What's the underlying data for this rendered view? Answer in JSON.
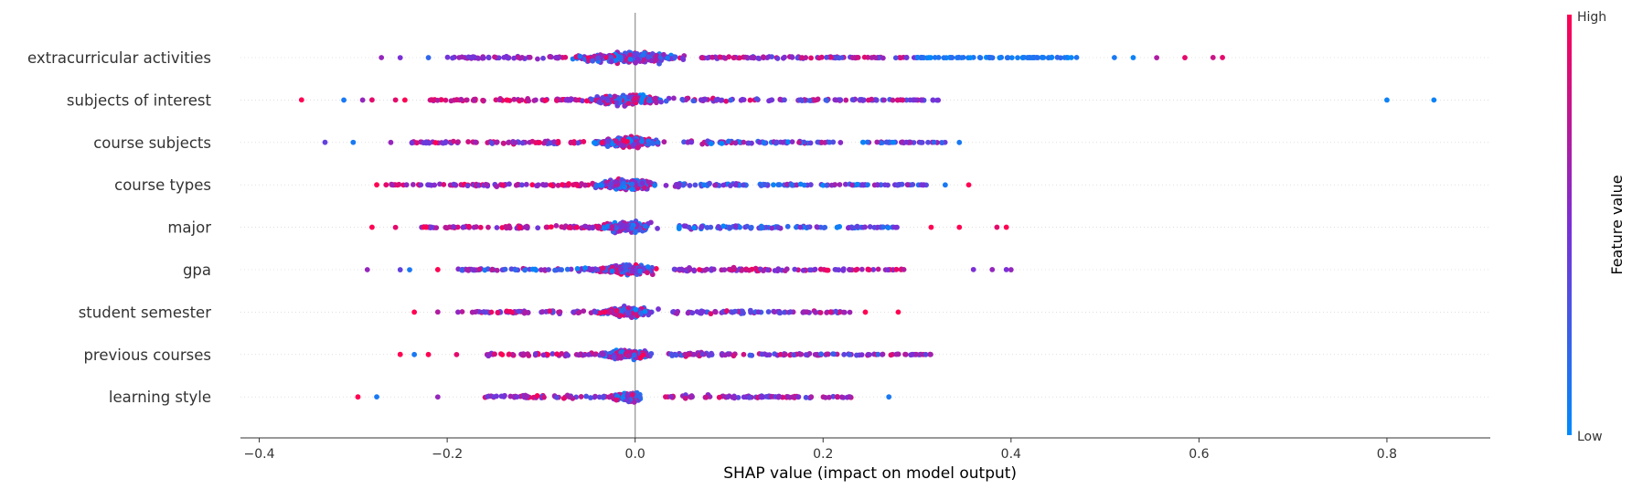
{
  "chart_data": {
    "type": "scatter",
    "subtype": "shap-beeswarm",
    "xlabel": "SHAP value (impact on model output)",
    "xlim": [
      -0.42,
      0.91
    ],
    "xticks": [
      -0.4,
      -0.2,
      0.0,
      0.2,
      0.4,
      0.6,
      0.8
    ],
    "xtick_labels": [
      "−0.4",
      "−0.2",
      "0.0",
      "0.2",
      "0.4",
      "0.6",
      "0.8"
    ],
    "features": [
      {
        "name": "extracurricular activities",
        "core_halfwidth": 0.07,
        "dense_density": 0.55,
        "outliers": [
          {
            "x": -0.27,
            "v": 0.6
          },
          {
            "x": -0.25,
            "v": 0.5
          },
          {
            "x": -0.22,
            "v": 0.2
          },
          {
            "x": 0.51,
            "v": 0.1
          },
          {
            "x": 0.53,
            "v": 0.05
          },
          {
            "x": 0.555,
            "v": 0.7
          },
          {
            "x": 0.585,
            "v": 0.9
          },
          {
            "x": 0.615,
            "v": 0.8
          },
          {
            "x": 0.625,
            "v": 0.9
          }
        ],
        "tail": [
          {
            "from": -0.2,
            "to": -0.08,
            "v": [
              0.4,
              0.8
            ]
          },
          {
            "from": 0.07,
            "to": 0.3,
            "v": [
              0.3,
              0.9
            ]
          },
          {
            "from": 0.3,
            "to": 0.47,
            "v": [
              0.0,
              0.2
            ]
          }
        ]
      },
      {
        "name": "subjects of interest",
        "core_halfwidth": 0.045,
        "dense_density": 0.5,
        "outliers": [
          {
            "x": -0.355,
            "v": 1.0
          },
          {
            "x": -0.31,
            "v": 0.1
          },
          {
            "x": -0.29,
            "v": 0.6
          },
          {
            "x": -0.28,
            "v": 0.9
          },
          {
            "x": -0.255,
            "v": 0.9
          },
          {
            "x": -0.245,
            "v": 1.0
          },
          {
            "x": 0.8,
            "v": 0.05
          },
          {
            "x": 0.85,
            "v": 0.05
          }
        ],
        "tail": [
          {
            "from": -0.22,
            "to": -0.06,
            "v": [
              0.5,
              1.0
            ]
          },
          {
            "from": 0.05,
            "to": 0.33,
            "v": [
              0.2,
              0.9
            ]
          }
        ]
      },
      {
        "name": "course subjects",
        "core_halfwidth": 0.04,
        "dense_density": 0.45,
        "outliers": [
          {
            "x": -0.33,
            "v": 0.4
          },
          {
            "x": -0.3,
            "v": 0.1
          },
          {
            "x": -0.26,
            "v": 0.6
          },
          {
            "x": 0.345,
            "v": 0.1
          }
        ],
        "tail": [
          {
            "from": -0.24,
            "to": -0.05,
            "v": [
              0.3,
              1.0
            ]
          },
          {
            "from": 0.05,
            "to": 0.33,
            "v": [
              0.0,
              0.8
            ]
          }
        ]
      },
      {
        "name": "course types",
        "core_halfwidth": 0.04,
        "dense_density": 0.45,
        "outliers": [
          {
            "x": -0.275,
            "v": 1.0
          },
          {
            "x": -0.265,
            "v": 0.9
          },
          {
            "x": 0.33,
            "v": 0.1
          },
          {
            "x": 0.355,
            "v": 1.0
          }
        ],
        "tail": [
          {
            "from": -0.26,
            "to": -0.05,
            "v": [
              0.4,
              1.0
            ]
          },
          {
            "from": 0.04,
            "to": 0.31,
            "v": [
              0.0,
              0.7
            ]
          }
        ]
      },
      {
        "name": "major",
        "core_halfwidth": 0.035,
        "dense_density": 0.4,
        "outliers": [
          {
            "x": -0.28,
            "v": 1.0
          },
          {
            "x": -0.255,
            "v": 0.9
          },
          {
            "x": 0.315,
            "v": 1.0
          },
          {
            "x": 0.345,
            "v": 1.0
          },
          {
            "x": 0.385,
            "v": 0.9
          },
          {
            "x": 0.395,
            "v": 1.0
          }
        ],
        "tail": [
          {
            "from": -0.23,
            "to": -0.04,
            "v": [
              0.4,
              1.0
            ]
          },
          {
            "from": 0.04,
            "to": 0.28,
            "v": [
              0.0,
              0.6
            ]
          }
        ]
      },
      {
        "name": "gpa",
        "core_halfwidth": 0.035,
        "dense_density": 0.4,
        "outliers": [
          {
            "x": -0.285,
            "v": 0.6
          },
          {
            "x": -0.25,
            "v": 0.4
          },
          {
            "x": -0.24,
            "v": 0.1
          },
          {
            "x": -0.21,
            "v": 1.0
          },
          {
            "x": 0.36,
            "v": 0.5
          },
          {
            "x": 0.38,
            "v": 0.6
          },
          {
            "x": 0.395,
            "v": 0.5
          },
          {
            "x": 0.4,
            "v": 0.6
          }
        ],
        "tail": [
          {
            "from": -0.19,
            "to": -0.04,
            "v": [
              0.0,
              0.8
            ]
          },
          {
            "from": 0.04,
            "to": 0.29,
            "v": [
              0.4,
              1.0
            ]
          }
        ]
      },
      {
        "name": "student semester",
        "core_halfwidth": 0.035,
        "dense_density": 0.4,
        "outliers": [
          {
            "x": -0.235,
            "v": 1.0
          },
          {
            "x": -0.21,
            "v": 0.7
          },
          {
            "x": 0.245,
            "v": 1.0
          },
          {
            "x": 0.28,
            "v": 1.0
          }
        ],
        "tail": [
          {
            "from": -0.19,
            "to": -0.04,
            "v": [
              0.3,
              1.0
            ]
          },
          {
            "from": 0.04,
            "to": 0.23,
            "v": [
              0.2,
              0.9
            ]
          }
        ]
      },
      {
        "name": "previous courses",
        "core_halfwidth": 0.03,
        "dense_density": 0.35,
        "outliers": [
          {
            "x": -0.25,
            "v": 1.0
          },
          {
            "x": -0.235,
            "v": 0.1
          },
          {
            "x": -0.22,
            "v": 1.0
          },
          {
            "x": -0.19,
            "v": 0.9
          }
        ],
        "tail": [
          {
            "from": -0.16,
            "to": -0.035,
            "v": [
              0.4,
              1.0
            ]
          },
          {
            "from": 0.035,
            "to": 0.32,
            "v": [
              0.2,
              0.9
            ]
          }
        ]
      },
      {
        "name": "learning style",
        "core_halfwidth": 0.02,
        "dense_density": 0.3,
        "outliers": [
          {
            "x": -0.295,
            "v": 1.0
          },
          {
            "x": -0.275,
            "v": 0.1
          },
          {
            "x": -0.21,
            "v": 0.6
          },
          {
            "x": 0.27,
            "v": 0.1
          }
        ],
        "tail": [
          {
            "from": -0.16,
            "to": -0.03,
            "v": [
              0.3,
              1.0
            ]
          },
          {
            "from": 0.03,
            "to": 0.23,
            "v": [
              0.3,
              0.9
            ]
          }
        ]
      }
    ],
    "colorbar": {
      "title": "Feature value",
      "high_label": "High",
      "low_label": "Low",
      "high_color": "#ff0052",
      "mid_color": "#7b2fd6",
      "low_color": "#008bfb"
    },
    "zero_line": true,
    "grid": false
  }
}
